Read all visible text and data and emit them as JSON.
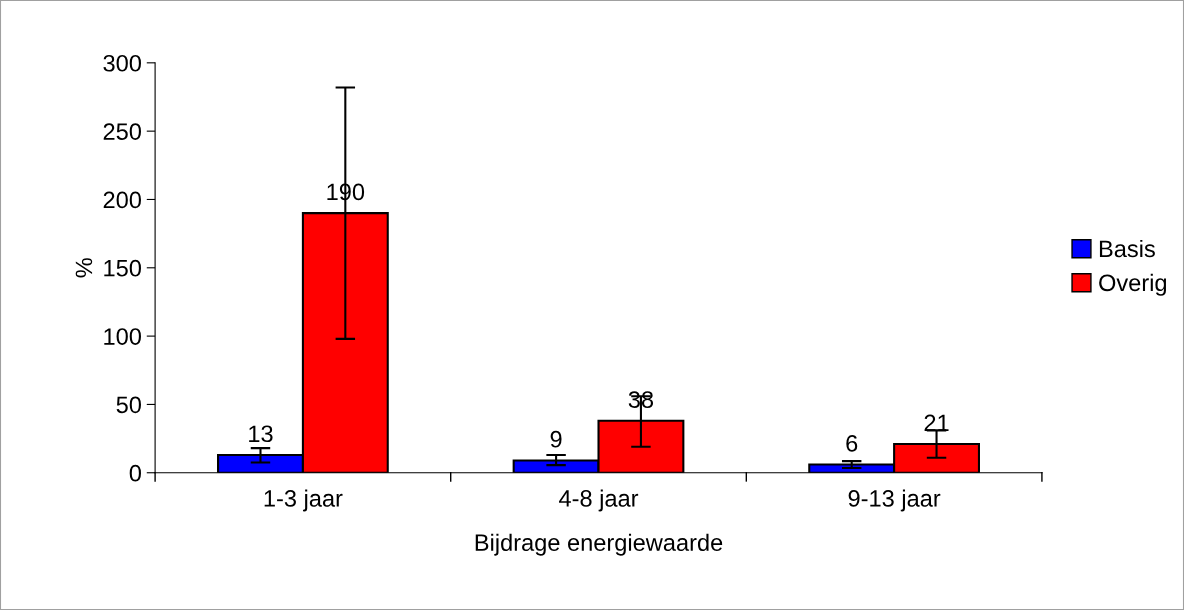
{
  "chart_data": {
    "type": "bar",
    "xlabel": "Bijdrage energiewaarde",
    "ylabel": "%",
    "categories": [
      "1-3 jaar",
      "4-8 jaar",
      "9-13 jaar"
    ],
    "series": [
      {
        "name": "Basis",
        "color": "#0000ff",
        "values": [
          13,
          9,
          6
        ],
        "errors": [
          [
            7.5,
            18
          ],
          [
            5.6,
            13
          ],
          [
            3.5,
            8.5
          ]
        ]
      },
      {
        "name": "Overig",
        "color": "#ff0000",
        "values": [
          190,
          38,
          21
        ],
        "errors": [
          [
            98,
            282
          ],
          [
            19,
            56
          ],
          [
            11,
            31
          ]
        ]
      }
    ],
    "ylim": [
      0,
      300
    ],
    "yticks": [
      0,
      50,
      100,
      150,
      200,
      250,
      300
    ],
    "data_labels": true,
    "grid": false,
    "legend": "right"
  }
}
